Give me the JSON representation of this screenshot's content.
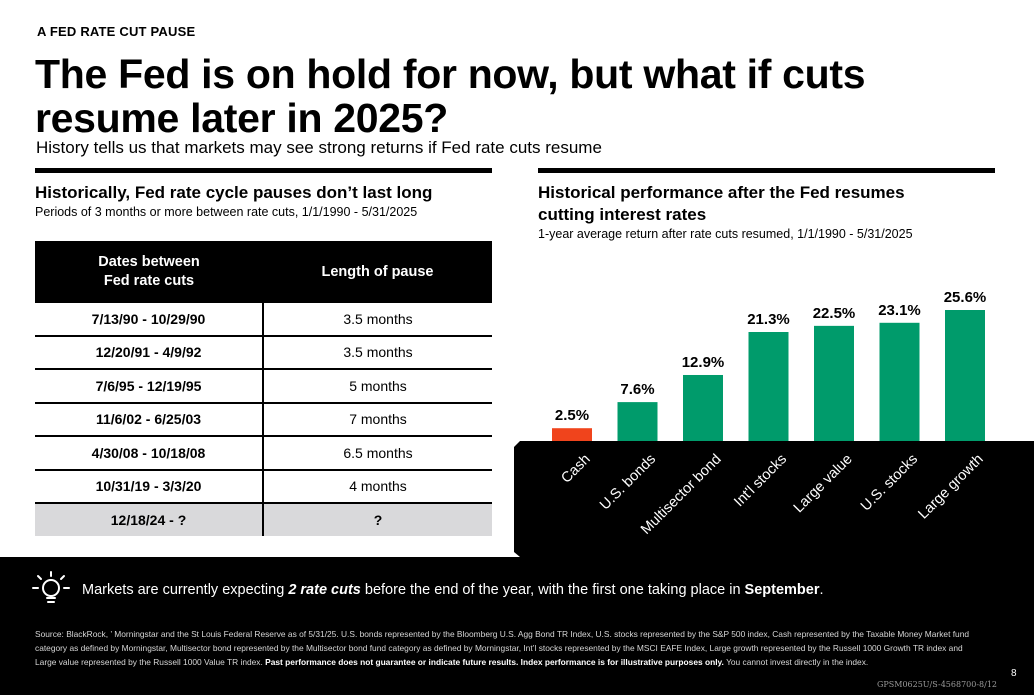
{
  "kicker": "A FED RATE CUT PAUSE",
  "headline": "The Fed is on hold for now, but what if cuts resume later in 2025?",
  "subhead": "History tells us that markets may see strong returns if Fed rate cuts resume",
  "left": {
    "title": "Historically, Fed rate cycle pauses don’t last long",
    "subtitle": "Periods of 3 months or more between rate cuts, 1/1/1990 - 5/31/2025",
    "col1_line1": "Dates between",
    "col1_line2": "Fed rate cuts",
    "col2": "Length of pause",
    "rows": [
      {
        "dates": "7/13/90 - 10/29/90",
        "length": "3.5 months"
      },
      {
        "dates": "12/20/91 - 4/9/92",
        "length": "3.5 months"
      },
      {
        "dates": "7/6/95 - 12/19/95",
        "length": "5 months"
      },
      {
        "dates": "11/6/02 - 6/25/03",
        "length": "7 months"
      },
      {
        "dates": "4/30/08 - 10/18/08",
        "length": "6.5 months"
      },
      {
        "dates": "10/31/19 - 3/3/20",
        "length": "4 months"
      },
      {
        "dates": "12/18/24 - ?",
        "length": "?"
      }
    ]
  },
  "right": {
    "title_line1": "Historical performance after the Fed resumes",
    "title_line2": "cutting interest rates",
    "subtitle": "1-year average return after rate cuts resumed, 1/1/1990 - 5/31/2025"
  },
  "chart_data": {
    "type": "bar",
    "categories": [
      "Cash",
      "U.S. bonds",
      "Multisector bond",
      "Int'l stocks",
      "Large value",
      "U.S. stocks",
      "Large growth"
    ],
    "values": [
      2.5,
      7.6,
      12.9,
      21.3,
      22.5,
      23.1,
      25.6
    ],
    "labels": [
      "2.5%",
      "7.6%",
      "12.9%",
      "21.3%",
      "22.5%",
      "23.1%",
      "25.6%"
    ],
    "colors": [
      "#f0441c",
      "#009b6b",
      "#009b6b",
      "#009b6b",
      "#009b6b",
      "#009b6b",
      "#009b6b"
    ],
    "ylim": [
      0,
      25.6
    ]
  },
  "callout": {
    "pre": "Markets are currently expecting ",
    "emph": "2 rate cuts",
    "mid": " before the end of the year, with the first one taking place in ",
    "month": "September",
    "post": "."
  },
  "footnote": {
    "text1": "Source: BlackRock, ’ Morningstar and the St Louis Federal Reserve as of 5/31/25. U.S. bonds represented by the Bloomberg U.S. Agg Bond TR Index, U.S. stocks represented by the S&P 500 index, Cash represented by the Taxable Money Market fund category as defined by Morningstar, Multisector bond represented by the Multisector bond fund category as defined by Morningstar, Int’l stocks represented by the MSCI EAFE Index, Large growth represented by the Russell 1000 Growth TR index and Large value represented by the Russell 1000 Value TR index. ",
    "bold": "Past performance does not guarantee or indicate future results. Index performance is for illustrative purposes only.",
    "text2": " You cannot invest directly in the index."
  },
  "page_number": "8",
  "doc_code": "GPSM0625U/S-4568700-8/12"
}
